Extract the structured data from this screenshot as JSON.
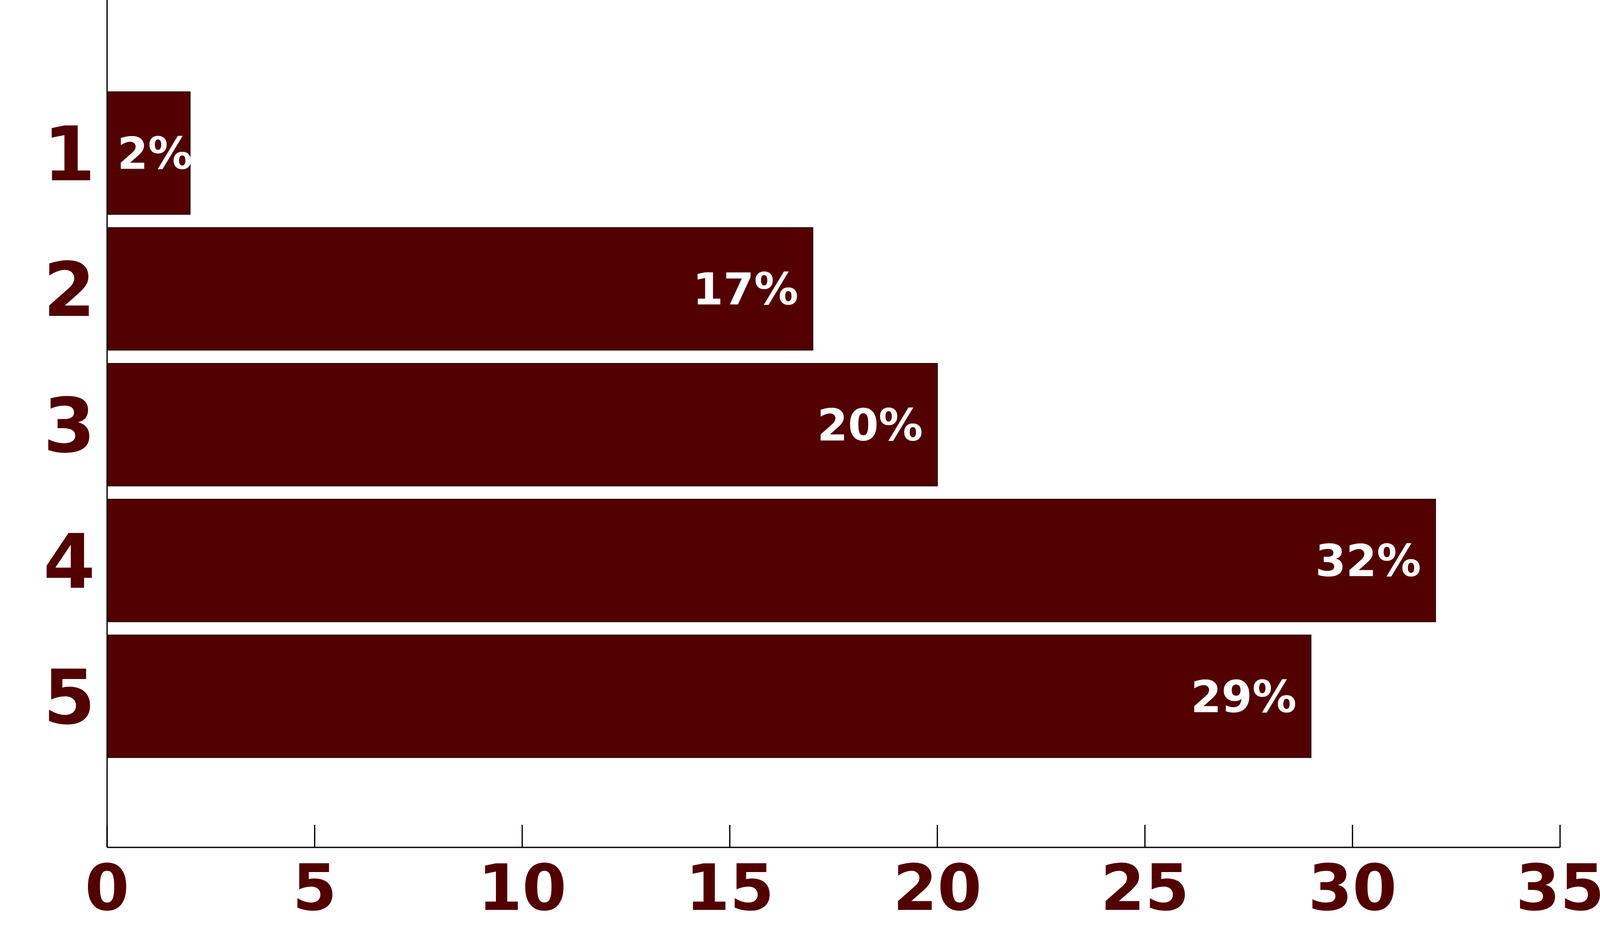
{
  "chart_data": {
    "type": "bar",
    "orientation": "horizontal",
    "categories": [
      "1",
      "2",
      "3",
      "4",
      "5"
    ],
    "values": [
      2,
      17,
      20,
      32,
      29
    ],
    "value_labels": [
      "2%",
      "17%",
      "20%",
      "32%",
      "29%"
    ],
    "color": "#520000",
    "xlim": [
      0,
      35
    ],
    "xticks": [
      0,
      5,
      10,
      15,
      20,
      25,
      30,
      35
    ],
    "grid": false,
    "data_labels": true
  }
}
